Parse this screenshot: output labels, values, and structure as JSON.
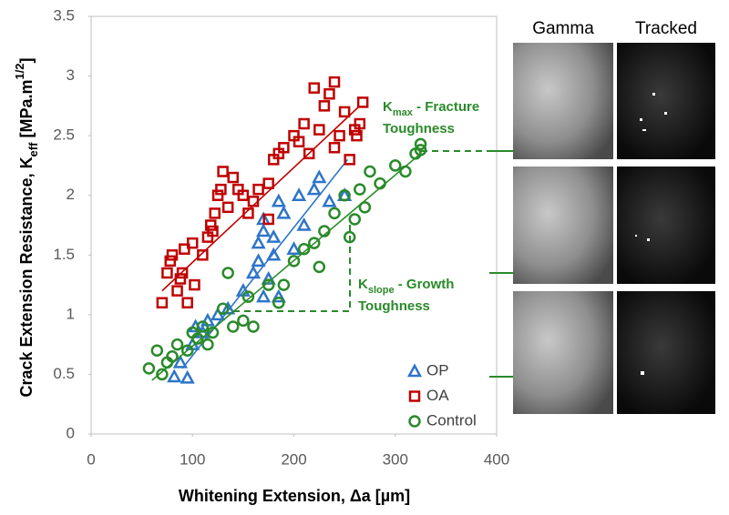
{
  "chart_data": {
    "type": "scatter",
    "x_label": "Whitening Extension, Δa [µm]",
    "y_label": [
      "Crack Extension Resistance, K",
      "eff",
      " [MPa.m",
      "1/2",
      "]"
    ],
    "xlim": [
      0,
      400
    ],
    "xticks": [
      0,
      100,
      200,
      300,
      400
    ],
    "ylim": [
      0,
      3.5
    ],
    "yticks": [
      0,
      0.5,
      1,
      1.5,
      2,
      2.5,
      3,
      3.5
    ],
    "legend": "lower right",
    "series": [
      {
        "name": "OP",
        "color": "#2e75c8",
        "marker": "triangle",
        "x": [
          82,
          95,
          88,
          100,
          103,
          110,
          115,
          125,
          135,
          150,
          160,
          165,
          165,
          170,
          170,
          175,
          180,
          180,
          185,
          190,
          185,
          200,
          205,
          210,
          220,
          225,
          235,
          250,
          170
        ],
        "y": [
          0.48,
          0.47,
          0.6,
          0.75,
          0.9,
          0.85,
          0.95,
          1.0,
          1.05,
          1.2,
          1.35,
          1.45,
          1.6,
          1.7,
          1.8,
          1.3,
          1.5,
          1.65,
          1.95,
          1.85,
          1.15,
          1.55,
          2.0,
          1.75,
          2.05,
          2.15,
          1.95,
          2.0,
          1.15
        ],
        "fit": {
          "x": [
            90,
            253
          ],
          "y": [
            0.55,
            2.3
          ]
        }
      },
      {
        "name": "OA",
        "color": "#c00000",
        "marker": "square",
        "x": [
          70,
          75,
          78,
          80,
          85,
          88,
          90,
          92,
          95,
          100,
          102,
          110,
          115,
          118,
          120,
          122,
          125,
          128,
          130,
          135,
          140,
          145,
          150,
          155,
          160,
          165,
          175,
          180,
          185,
          190,
          200,
          205,
          210,
          215,
          220,
          225,
          230,
          235,
          240,
          240,
          245,
          250,
          255,
          260,
          262,
          265,
          268,
          175
        ],
        "y": [
          1.1,
          1.35,
          1.45,
          1.5,
          1.2,
          1.3,
          1.35,
          1.55,
          1.1,
          1.6,
          1.25,
          1.5,
          1.65,
          1.75,
          1.7,
          1.85,
          2.0,
          2.05,
          2.2,
          1.9,
          2.15,
          2.05,
          2.0,
          1.85,
          1.95,
          2.05,
          2.1,
          2.3,
          2.35,
          2.4,
          2.5,
          2.45,
          2.6,
          2.35,
          2.9,
          2.55,
          2.75,
          2.85,
          2.95,
          2.4,
          2.5,
          2.7,
          2.3,
          2.55,
          2.5,
          2.6,
          2.78,
          1.8
        ],
        "fit": {
          "x": [
            70,
            265
          ],
          "y": [
            1.2,
            2.75
          ]
        }
      },
      {
        "name": "Control",
        "color": "#2a8a2a",
        "marker": "circle",
        "x": [
          57,
          65,
          70,
          75,
          80,
          85,
          95,
          100,
          105,
          110,
          115,
          120,
          130,
          135,
          140,
          150,
          155,
          160,
          175,
          185,
          190,
          200,
          210,
          220,
          225,
          230,
          240,
          250,
          255,
          260,
          265,
          270,
          275,
          285,
          300,
          310,
          320,
          325,
          325
        ],
        "y": [
          0.55,
          0.7,
          0.5,
          0.6,
          0.65,
          0.75,
          0.7,
          0.85,
          0.8,
          0.9,
          0.75,
          0.85,
          1.05,
          1.35,
          0.9,
          0.95,
          1.15,
          0.9,
          1.25,
          1.1,
          1.25,
          1.45,
          1.55,
          1.6,
          1.4,
          1.7,
          1.85,
          2.0,
          1.65,
          1.8,
          2.05,
          1.9,
          2.2,
          2.1,
          2.25,
          2.2,
          2.35,
          2.43,
          2.38
        ],
        "fit": {
          "x": [
            60,
            325
          ],
          "y": [
            0.45,
            2.35
          ]
        }
      }
    ],
    "annotations": [
      {
        "parts": [
          "K",
          "max",
          " - Fracture",
          "Toughness"
        ]
      },
      {
        "parts": [
          "K",
          "slope",
          " - Growth",
          "Toughness"
        ]
      }
    ],
    "panel_titles": [
      "Gamma",
      "Tracked"
    ]
  }
}
